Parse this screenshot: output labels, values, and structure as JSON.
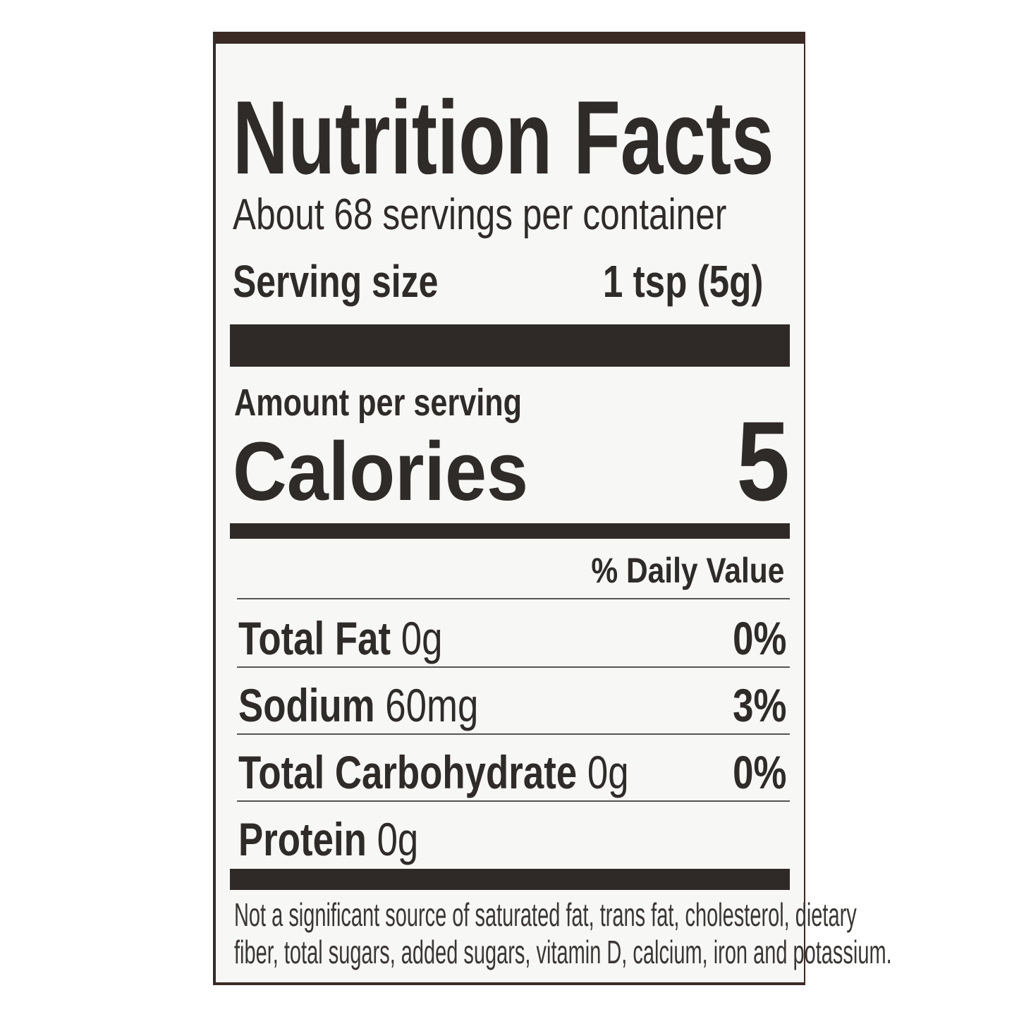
{
  "title": "Nutrition Facts",
  "servings_per_container": "About 68 servings per container",
  "serving_size": {
    "label": "Serving size",
    "value": "1 tsp (5g)"
  },
  "amount_per_serving": "Amount per serving",
  "calories": {
    "label": "Calories",
    "value": "5"
  },
  "daily_value_header": "% Daily Value",
  "nutrients": [
    {
      "name": "Total Fat",
      "amount": "0g",
      "dv": "0%"
    },
    {
      "name": "Sodium",
      "amount": "60mg",
      "dv": "3%"
    },
    {
      "name": "Total Carbohydrate",
      "amount": "0g",
      "dv": "0%"
    },
    {
      "name": "Protein",
      "amount": "0g",
      "dv": ""
    }
  ],
  "footnote": {
    "line1": "Not a significant source of saturated fat, trans fat, cholesterol, dietary",
    "line2": "fiber, total sugars, added sugars, vitamin D, calcium, iron and potassium."
  },
  "colors": {
    "ink": "#2f2b29",
    "border": "#3b2a24",
    "paper": "#f7f7f6"
  }
}
